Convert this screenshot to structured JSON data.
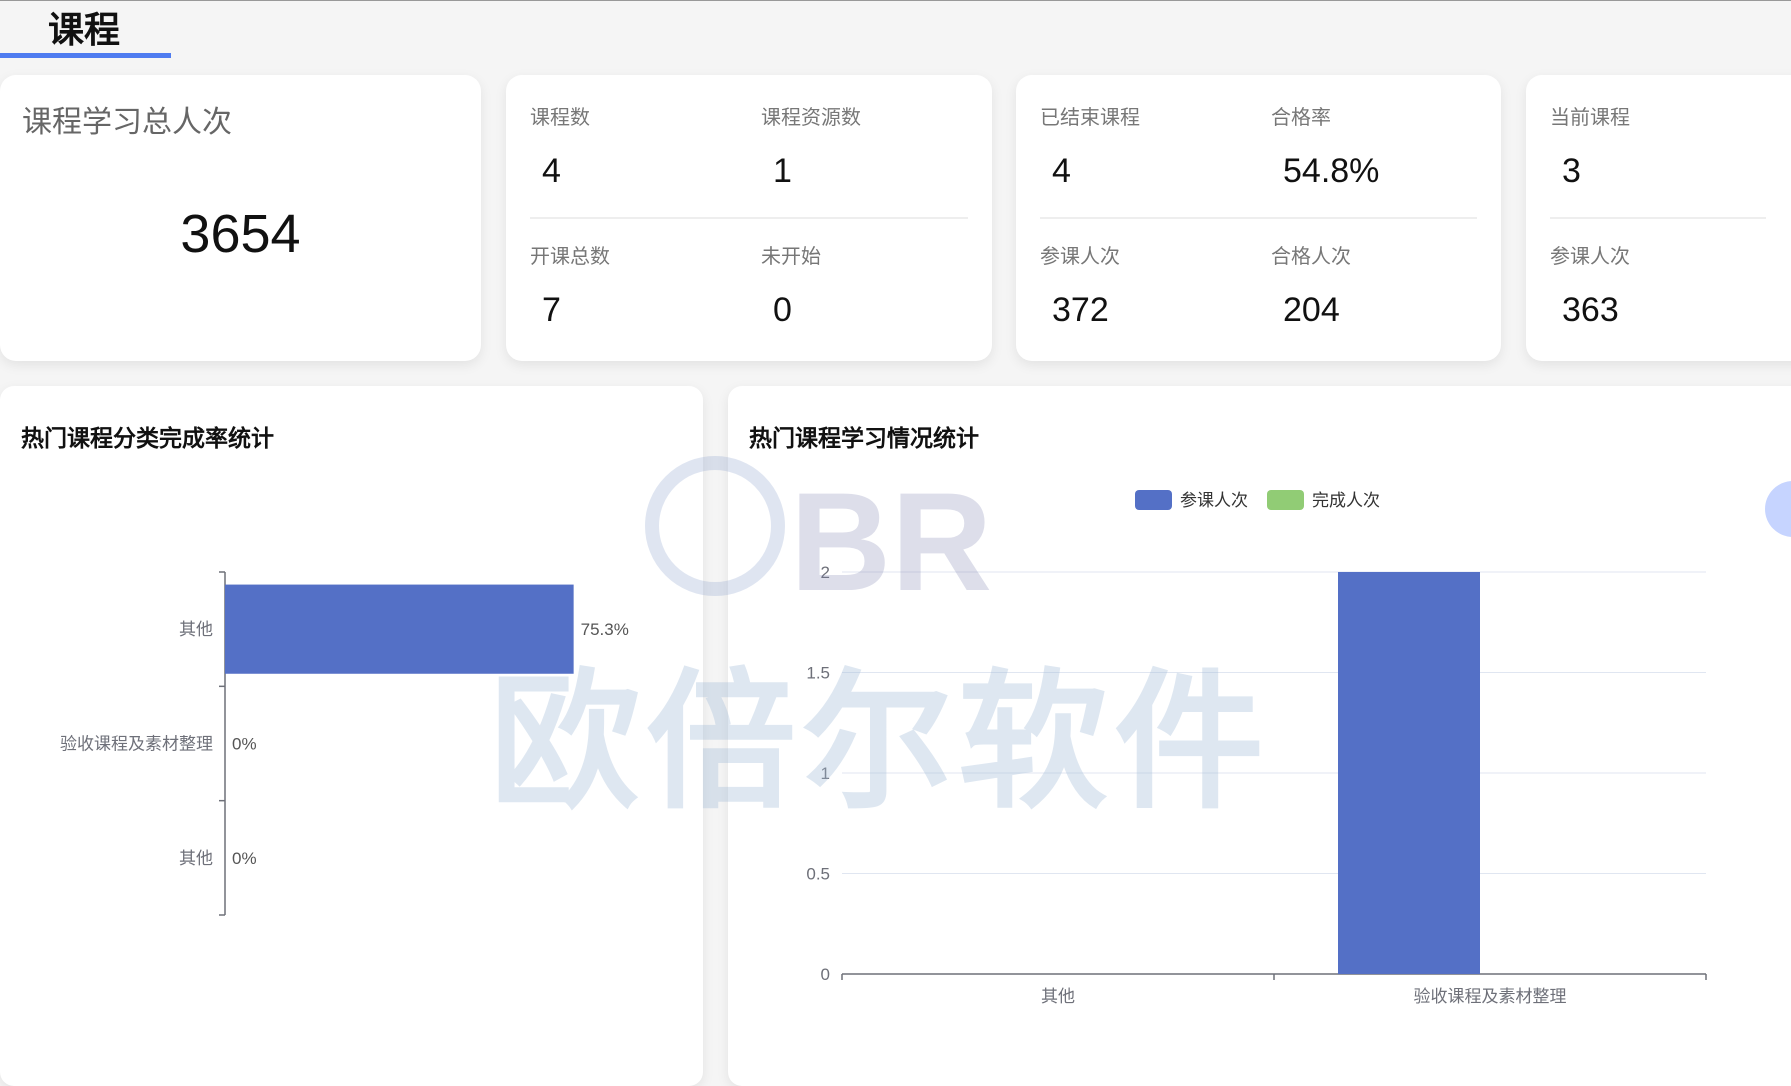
{
  "tab": {
    "label": "课程"
  },
  "cards": {
    "total": {
      "label": "课程学习总人次",
      "value": "3654"
    },
    "course": {
      "items": [
        {
          "label": "课程数",
          "value": "4"
        },
        {
          "label": "课程资源数",
          "value": "1"
        },
        {
          "label": "开课总数",
          "value": "7"
        },
        {
          "label": "未开始",
          "value": "0"
        }
      ]
    },
    "ended": {
      "items": [
        {
          "label": "已结束课程",
          "value": "4"
        },
        {
          "label": "合格率",
          "value": "54.8%"
        },
        {
          "label": "参课人次",
          "value": "372"
        },
        {
          "label": "合格人次",
          "value": "204"
        }
      ]
    },
    "current": {
      "items": [
        {
          "label": "当前课程",
          "value": "3"
        },
        {
          "label": "参课人次",
          "value": "363"
        }
      ]
    }
  },
  "watermark": {
    "text": "欧倍尔软件",
    "logo": "BR"
  },
  "chart_data": [
    {
      "type": "bar",
      "orientation": "horizontal",
      "title": "热门课程分类完成率统计",
      "categories": [
        "其他",
        "验收课程及素材整理",
        "其他"
      ],
      "values": [
        75.3,
        0,
        0
      ],
      "labels": [
        "75.3%",
        "0%",
        "0%"
      ],
      "xlim": [
        0,
        100
      ],
      "color": "#5470c6"
    },
    {
      "type": "bar",
      "title": "热门课程学习情况统计",
      "categories": [
        "其他",
        "验收课程及素材整理"
      ],
      "series": [
        {
          "name": "参课人次",
          "values": [
            0,
            2
          ],
          "color": "#5470c6"
        },
        {
          "name": "完成人次",
          "values": [
            0,
            0
          ],
          "color": "#91cc75"
        }
      ],
      "ylim": [
        0,
        2
      ],
      "yticks": [
        "0",
        "0.5",
        "1",
        "1.5",
        "2"
      ],
      "legend": "top-center",
      "grid": true
    }
  ]
}
